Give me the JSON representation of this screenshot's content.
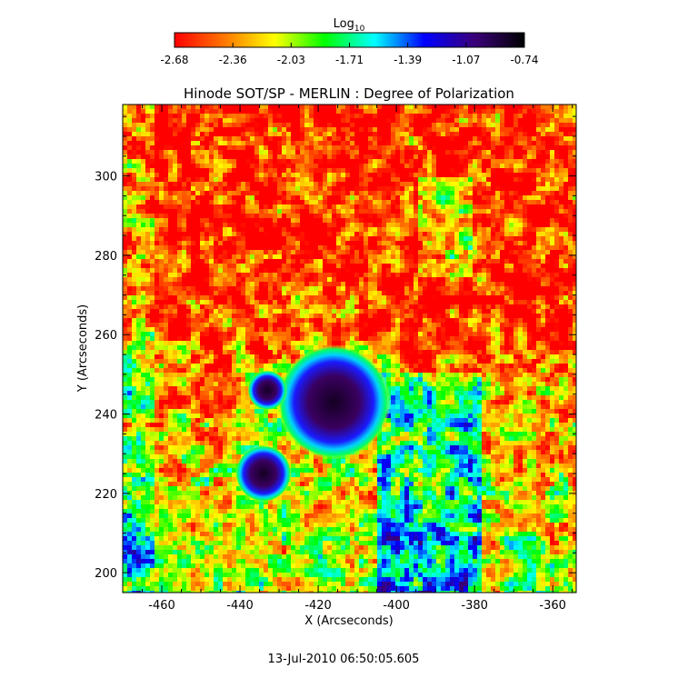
{
  "chart_data": {
    "type": "heatmap",
    "title": "Hinode SOT/SP - MERLIN : Degree of Polarization",
    "xlabel": "X (Arcseconds)",
    "ylabel": "Y (Arcseconds)",
    "xlim": [
      -470,
      -354
    ],
    "ylim": [
      195,
      318
    ],
    "x_ticks": [
      -460,
      -440,
      -420,
      -400,
      -380,
      -360
    ],
    "y_ticks": [
      200,
      220,
      240,
      260,
      280,
      300
    ],
    "colorbar": {
      "label_base": "Log",
      "label_subscript": "10",
      "ticks": [
        "-2.68",
        "-2.36",
        "-2.03",
        "-1.71",
        "-1.39",
        "-1.07",
        "-0.74"
      ],
      "min": -2.68,
      "max": -0.74,
      "colormap": [
        "#ff0000",
        "#ff7700",
        "#ffff00",
        "#00ff00",
        "#00ffff",
        "#0000ff",
        "#3a007a",
        "#000000"
      ]
    },
    "grid": false,
    "features": [
      {
        "name": "sunspot-main",
        "x": -416,
        "y": 243,
        "radius": 10
      },
      {
        "name": "pore-upper",
        "x": -433,
        "y": 246,
        "radius": 3.5
      },
      {
        "name": "pore-lower",
        "x": -434,
        "y": 225,
        "radius": 5
      }
    ]
  },
  "timestamp": "13-Jul-2010 06:50:05.605"
}
